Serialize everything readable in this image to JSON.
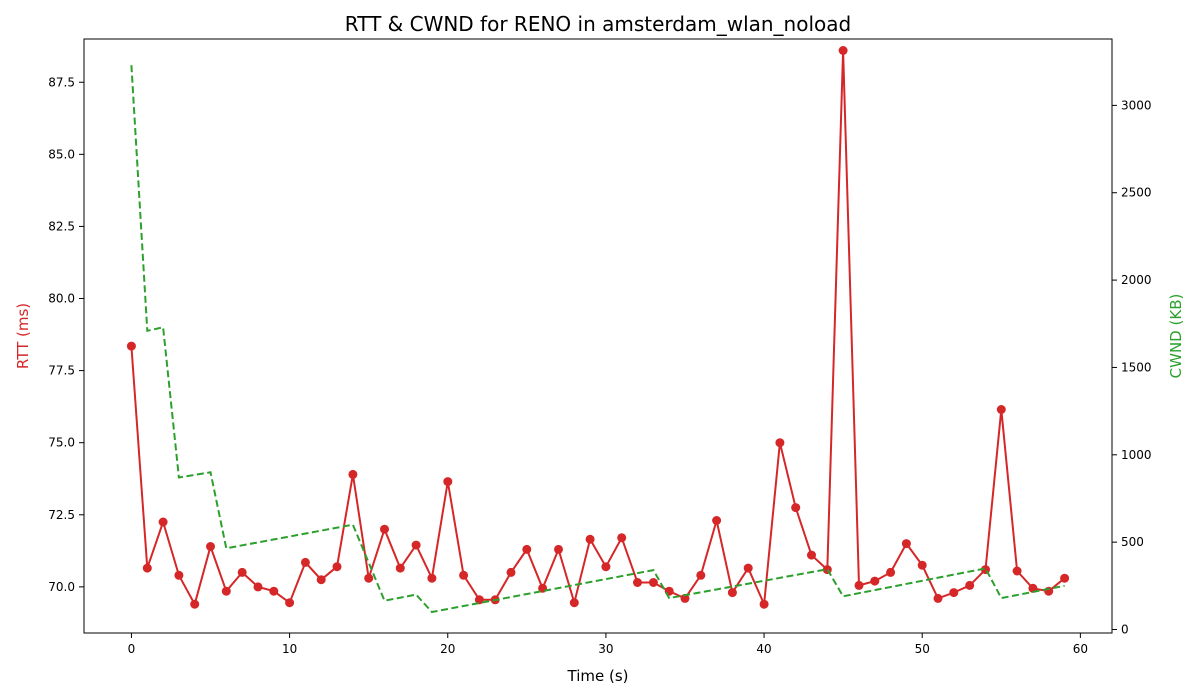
{
  "chart_data": {
    "type": "line",
    "title": "RTT & CWND for RENO in amsterdam_wlan_noload",
    "xlabel": "Time (s)",
    "ylabel_left": "RTT (ms)",
    "ylabel_right": "CWND (KB)",
    "xlim": [
      -3,
      62
    ],
    "ylim_left": [
      68.4,
      89.0
    ],
    "ylim_right": [
      -20,
      3380
    ],
    "x_ticks": [
      0,
      10,
      20,
      30,
      40,
      50,
      60
    ],
    "y_left_ticks": [
      70.0,
      72.5,
      75.0,
      77.5,
      80.0,
      82.5,
      85.0,
      87.5
    ],
    "y_right_ticks": [
      0,
      500,
      1000,
      1500,
      2000,
      2500,
      3000
    ],
    "grid": false,
    "colors": {
      "rtt": "#d62728",
      "cwnd": "#2ca02c"
    },
    "series": [
      {
        "axis": "left",
        "style": "solid-markers",
        "color": "#d62728",
        "x": [
          0,
          1,
          2,
          3,
          4,
          5,
          6,
          7,
          8,
          9,
          10,
          11,
          12,
          13,
          14,
          15,
          16,
          17,
          18,
          19,
          20,
          21,
          22,
          23,
          24,
          25,
          26,
          27,
          28,
          29,
          30,
          31,
          32,
          33,
          34,
          35,
          36,
          37,
          38,
          39,
          40,
          41,
          42,
          43,
          44,
          45,
          46,
          47,
          48,
          49,
          50,
          51,
          52,
          53,
          54,
          55,
          56,
          57,
          58,
          59
        ],
        "values": [
          78.35,
          70.65,
          72.25,
          70.4,
          69.4,
          71.4,
          69.85,
          70.5,
          70.0,
          69.85,
          69.45,
          70.85,
          70.25,
          70.7,
          73.9,
          70.3,
          72.0,
          70.65,
          71.45,
          70.3,
          73.65,
          70.4,
          69.55,
          69.55,
          70.5,
          71.3,
          69.95,
          71.3,
          69.45,
          71.65,
          70.7,
          71.7,
          70.15,
          70.15,
          69.85,
          69.6,
          70.4,
          72.3,
          69.8,
          70.65,
          69.4,
          75.0,
          72.75,
          71.1,
          70.6,
          88.6,
          70.05,
          70.2,
          70.5,
          71.5,
          70.75,
          69.6,
          69.8,
          70.05,
          70.6,
          76.15,
          70.55,
          69.95,
          69.85,
          70.3
        ]
      },
      {
        "axis": "right",
        "style": "dashed",
        "color": "#2ca02c",
        "x": [
          0,
          1,
          2,
          3,
          5,
          6,
          14,
          16,
          18,
          19,
          33,
          34,
          44,
          45,
          54,
          55,
          59
        ],
        "values": [
          3230,
          1710,
          1730,
          870,
          900,
          465,
          600,
          165,
          200,
          100,
          340,
          180,
          345,
          190,
          350,
          180,
          250
        ]
      }
    ]
  }
}
